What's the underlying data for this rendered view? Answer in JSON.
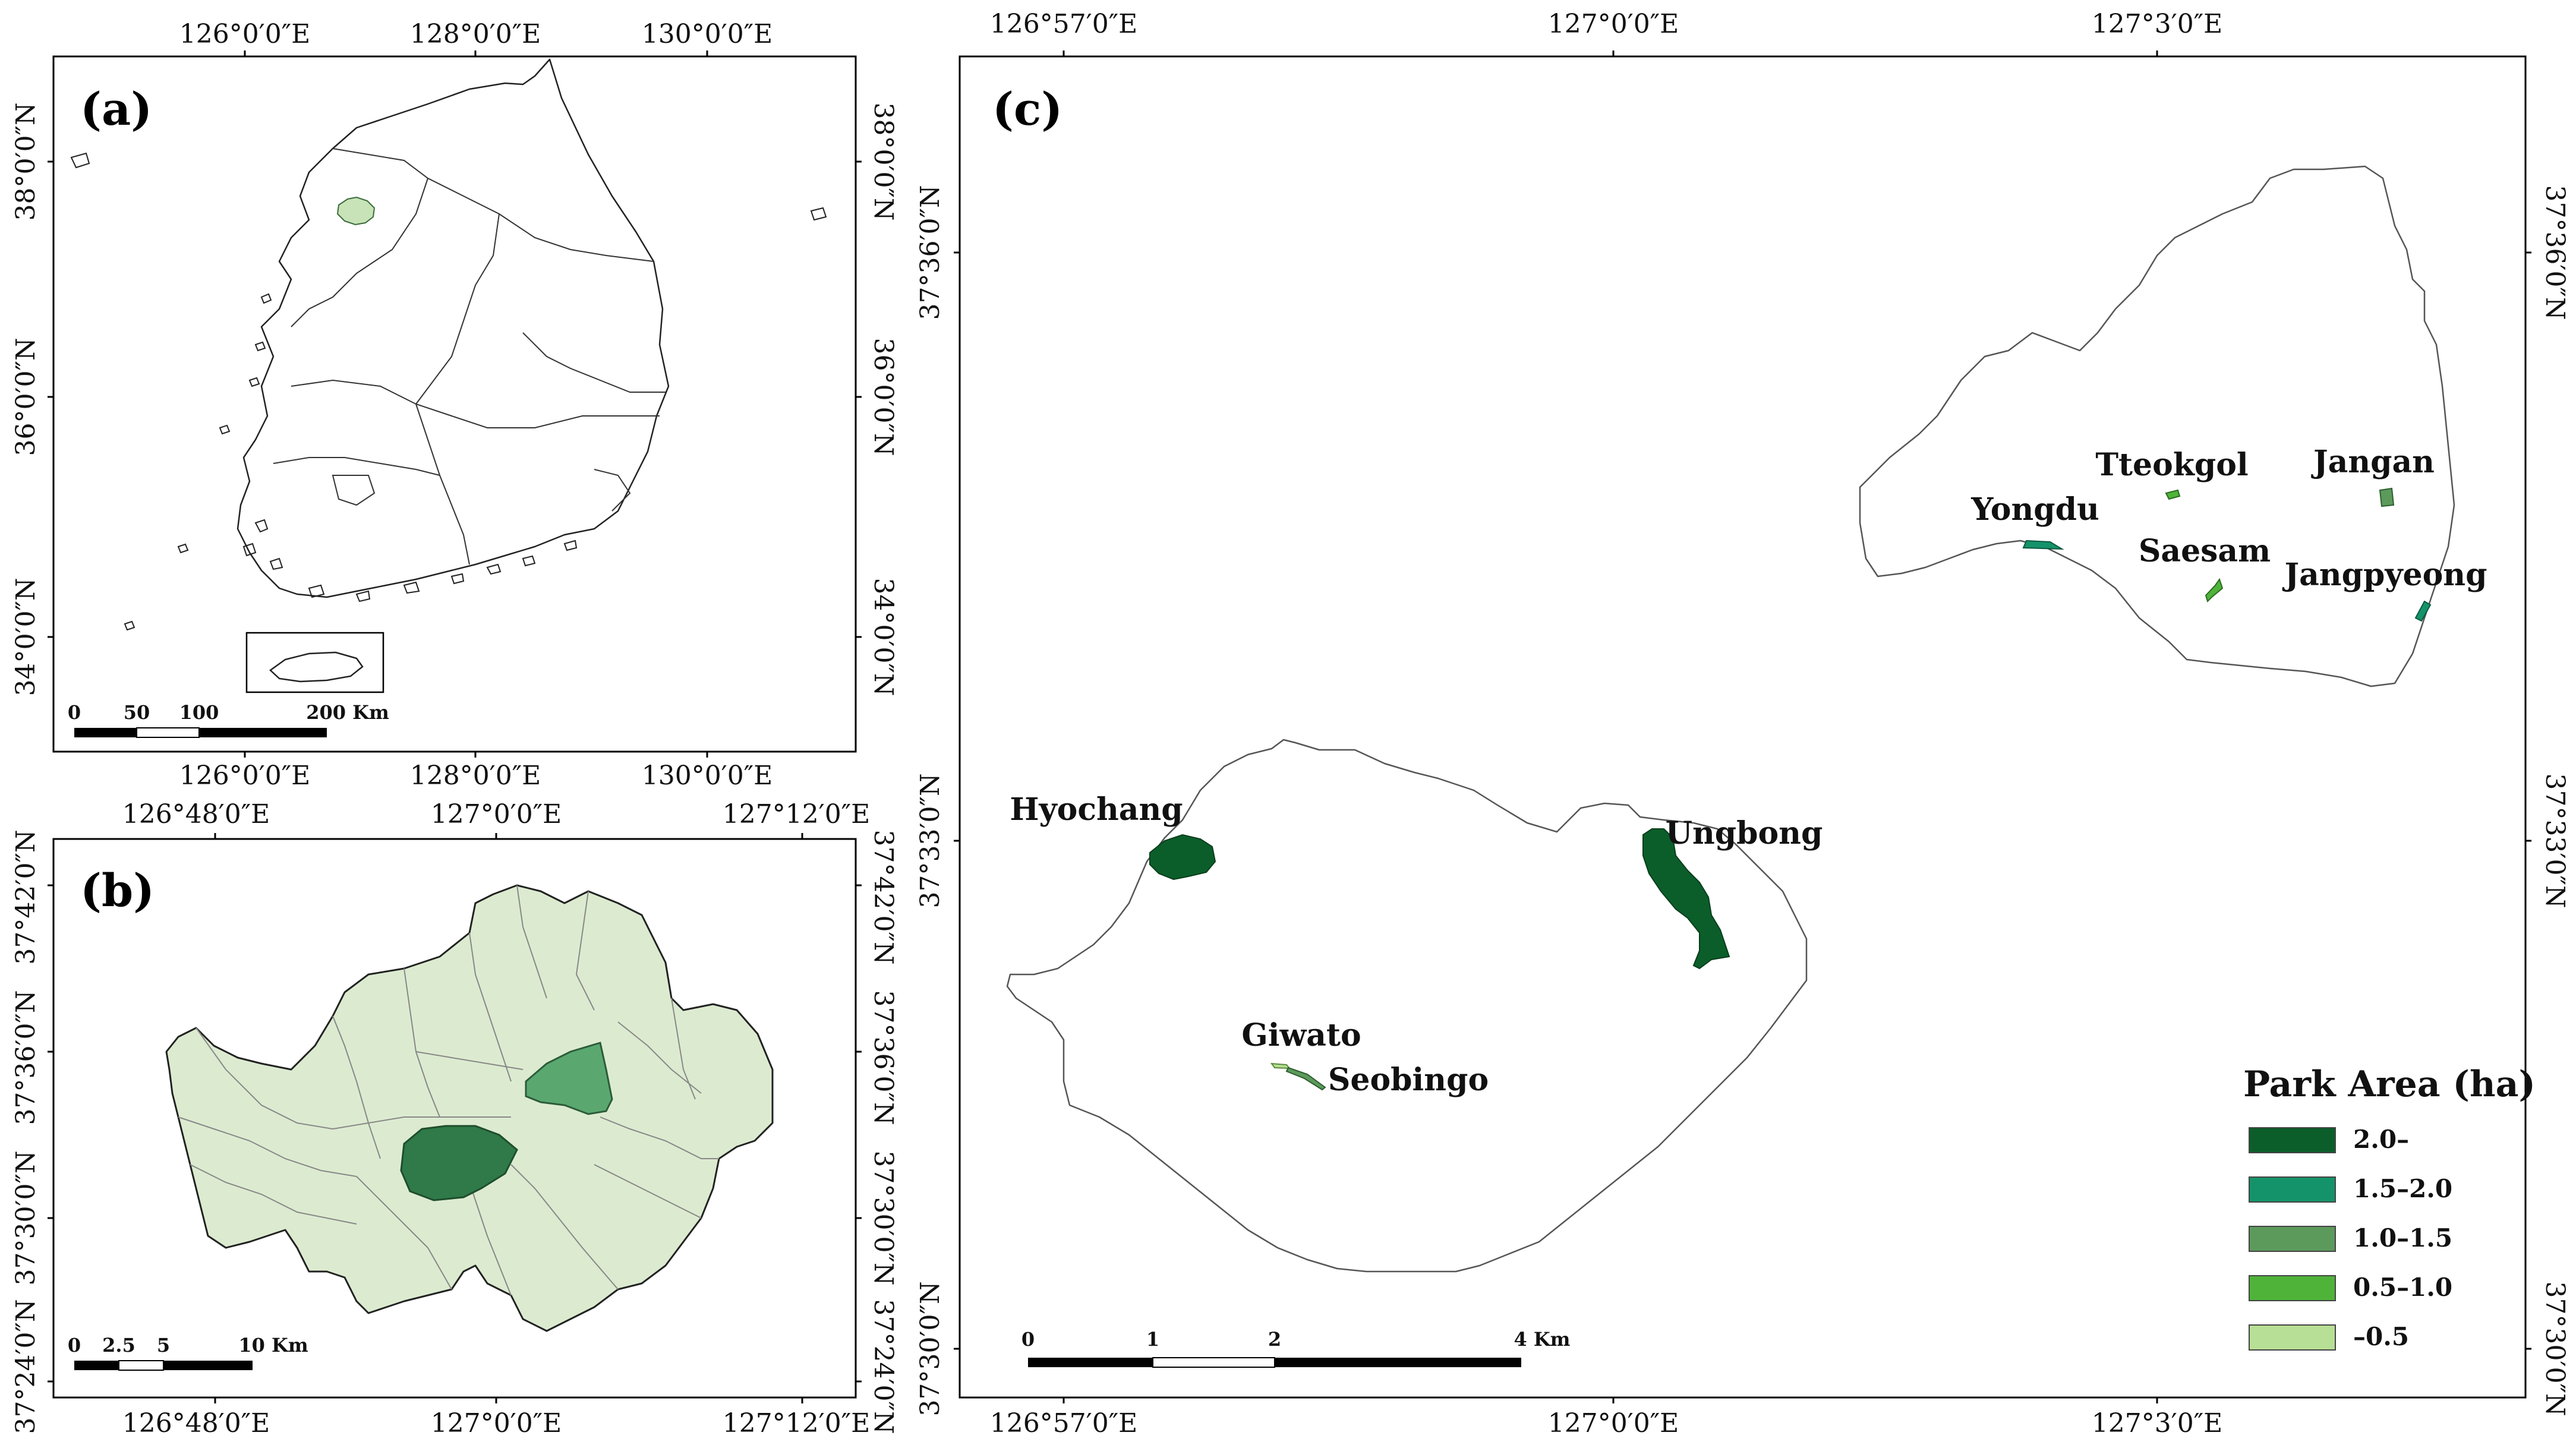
{
  "panels": {
    "a": {
      "label": "(a)",
      "top_ticks": [
        "126°0′0″E",
        "128°0′0″E",
        "130°0′0″E"
      ],
      "bottom_ticks": [
        "126°0′0″E",
        "128°0′0″E",
        "130°0′0″E"
      ],
      "left_ticks": [
        "38°0′0″N",
        "36°0′0″N",
        "34°0′0″N"
      ],
      "right_ticks": [
        "38°0′0″N",
        "36°0′0″N",
        "34°0′0″N"
      ],
      "scale": [
        "0",
        "50",
        "100",
        "200 Km"
      ]
    },
    "b": {
      "label": "(b)",
      "top_ticks": [
        "126°48′0″E",
        "127°0′0″E",
        "127°12′0″E"
      ],
      "bottom_ticks": [
        "126°48′0″E",
        "127°0′0″E",
        "127°12′0″E"
      ],
      "left_ticks": [
        "37°42′0″N",
        "37°36′0″N",
        "37°30′0″N",
        "37°24′0″N"
      ],
      "right_ticks": [
        "37°42′0″N",
        "37°36′0″N",
        "37°30′0″N",
        "37°24′0″N"
      ],
      "scale": [
        "0",
        "2.5",
        "5",
        "10 Km"
      ]
    },
    "c": {
      "label": "(c)",
      "top_ticks": [
        "126°57′0″E",
        "127°0′0″E",
        "127°3′0″E"
      ],
      "bottom_ticks": [
        "126°57′0″E",
        "127°0′0″E",
        "127°3′0″E"
      ],
      "left_ticks": [
        "37°36′0″N",
        "37°33′0″N",
        "37°30′0″N"
      ],
      "right_ticks": [
        "37°36′0″N",
        "37°33′0″N",
        "37°30′0″N"
      ],
      "scale": [
        "0",
        "1",
        "2",
        "4 Km"
      ],
      "parks": [
        "Tteokgol",
        "Jangan",
        "Yongdu",
        "Saesam",
        "Jangpyeong",
        "Hyochang",
        "Ungbong",
        "Giwato",
        "Seobingo"
      ]
    }
  },
  "legend": {
    "title": "Park Area (ha)",
    "items": [
      {
        "label": "2.0–",
        "color": "#0b5e2a"
      },
      {
        "label": "1.5–2.0",
        "color": "#14936a"
      },
      {
        "label": "1.0–1.5",
        "color": "#5c9a5c"
      },
      {
        "label": "0.5–1.0",
        "color": "#4fb33a"
      },
      {
        "label": "–0.5",
        "color": "#b7df95"
      }
    ]
  },
  "colors": {
    "seoul_fill": "#dcebd0",
    "gwangjin_fill": "#2f7a48",
    "seongbuk_fill": "#5aa870"
  }
}
